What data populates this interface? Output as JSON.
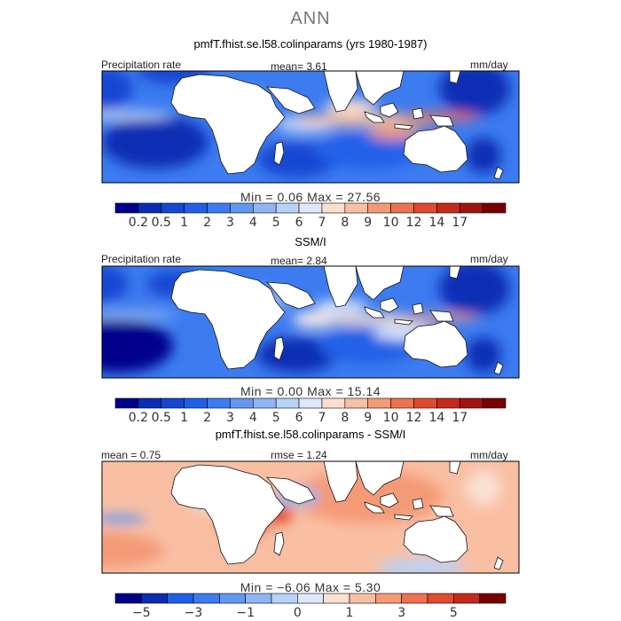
{
  "suptitle": "ANN",
  "chart_data": [
    {
      "type": "heatmap",
      "title": "pmfT.fhist.se.l58.colinparams (yrs 1980-1987)",
      "variable_label": "Precipitation rate",
      "stat_text": "mean=   3.61",
      "units": "mm/day",
      "min_max_text": "Min =   0.06  Max =  27.56",
      "colorbar": {
        "ticks": [
          "0.2",
          "0.5",
          "1",
          "2",
          "3",
          "4",
          "5",
          "6",
          "7",
          "8",
          "9",
          "10",
          "12",
          "14",
          "17"
        ],
        "colors": [
          "#00008b",
          "#0a2db4",
          "#1447d2",
          "#2060e8",
          "#3c7bf0",
          "#6497f2",
          "#8fb5f5",
          "#b9d2f8",
          "#dde9fb",
          "#fbe0d2",
          "#f9bfa3",
          "#f59a77",
          "#ee7150",
          "#e04a2f",
          "#c6291b",
          "#a01410",
          "#780000"
        ]
      }
    },
    {
      "type": "heatmap",
      "title": "SSM/I",
      "variable_label": "Precipitation rate",
      "stat_text": "mean=   2.84",
      "units": "mm/day",
      "min_max_text": "Min =   0.00  Max =  15.14",
      "colorbar": {
        "ticks": [
          "0.2",
          "0.5",
          "1",
          "2",
          "3",
          "4",
          "5",
          "6",
          "7",
          "8",
          "9",
          "10",
          "12",
          "14",
          "17"
        ],
        "colors": [
          "#00008b",
          "#0a2db4",
          "#1447d2",
          "#2060e8",
          "#3c7bf0",
          "#6497f2",
          "#8fb5f5",
          "#b9d2f8",
          "#dde9fb",
          "#fbe0d2",
          "#f9bfa3",
          "#f59a77",
          "#ee7150",
          "#e04a2f",
          "#c6291b",
          "#a01410",
          "#780000"
        ]
      }
    },
    {
      "type": "heatmap",
      "title": "pmfT.fhist.se.l58.colinparams - SSM/I",
      "variable_label": "mean =   0.75",
      "stat_text": "rmse =    1.24",
      "units": "mm/day",
      "min_max_text": "Min =  −6.06  Max =   5.30",
      "colorbar": {
        "ticks": [
          "−5",
          "−3",
          "−1",
          "0",
          "1",
          "3",
          "5"
        ],
        "colors": [
          "#00008b",
          "#0a2db4",
          "#2060e8",
          "#3c7bf0",
          "#6497f2",
          "#8fb5f5",
          "#b9d2f8",
          "#dde9fb",
          "#fbe0d2",
          "#f9bfa3",
          "#f59a77",
          "#ee7150",
          "#e04a2f",
          "#c6291b",
          "#780000"
        ]
      }
    }
  ]
}
